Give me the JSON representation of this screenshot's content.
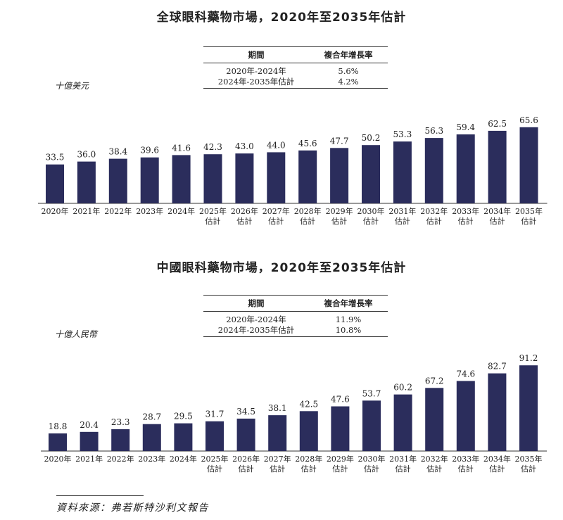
{
  "charts": [
    {
      "title": "全球眼科藥物市場，2020年至2035年估計",
      "unit": "十億美元",
      "cagr_table": {
        "headers": [
          "期間",
          "複合年增長率"
        ],
        "rows": [
          [
            "2020年-2024年",
            "5.6%"
          ],
          [
            "2024年-2035年估計",
            "4.2%"
          ]
        ]
      }
    },
    {
      "title": "中國眼科藥物市場，2020年至2035年估計",
      "unit": "十億人民幣",
      "cagr_table": {
        "headers": [
          "期間",
          "複合年增長率"
        ],
        "rows": [
          [
            "2020年-2024年",
            "11.9%"
          ],
          [
            "2024年-2035年估計",
            "10.8%"
          ]
        ]
      }
    }
  ],
  "chart_data": [
    {
      "type": "bar",
      "title": "全球眼科藥物市場，2020年至2035年估計",
      "ylabel": "十億美元",
      "categories": [
        "2020年",
        "2021年",
        "2022年",
        "2023年",
        "2024年",
        "2025年\n估計",
        "2026年\n估計",
        "2027年\n估計",
        "2028年\n估計",
        "2029年\n估計",
        "2030年\n估計",
        "2031年\n估計",
        "2032年\n估計",
        "2033年\n估計",
        "2034年\n估計",
        "2035年\n估計"
      ],
      "values": [
        33.5,
        36.0,
        38.4,
        39.6,
        41.6,
        42.3,
        43.0,
        44.0,
        45.6,
        47.7,
        50.2,
        53.3,
        56.3,
        59.4,
        62.5,
        65.6
      ],
      "value_labels": [
        "33.5",
        "36.0",
        "38.4",
        "39.6",
        "41.6",
        "42.3",
        "43.0",
        "44.0",
        "45.6",
        "47.7",
        "50.2",
        "53.3",
        "56.3",
        "59.4",
        "62.5",
        "65.6"
      ],
      "bar_color": "#2b2d5c",
      "grid": false
    },
    {
      "type": "bar",
      "title": "中國眼科藥物市場，2020年至2035年估計",
      "ylabel": "十億人民幣",
      "categories": [
        "2020年",
        "2021年",
        "2022年",
        "2023年",
        "2024年",
        "2025年\n估計",
        "2026年\n估計",
        "2027年\n估計",
        "2028年\n估計",
        "2029年\n估計",
        "2030年\n估計",
        "2031年\n估計",
        "2032年\n估計",
        "2033年\n估計",
        "2034年\n估計",
        "2035年\n估計"
      ],
      "values": [
        18.8,
        20.4,
        23.3,
        28.7,
        29.5,
        31.7,
        34.5,
        38.1,
        42.5,
        47.6,
        53.7,
        60.2,
        67.2,
        74.6,
        82.7,
        91.2
      ],
      "value_labels": [
        "18.8",
        "20.4",
        "23.3",
        "28.7",
        "29.5",
        "31.7",
        "34.5",
        "38.1",
        "42.5",
        "47.6",
        "53.7",
        "60.2",
        "67.2",
        "74.6",
        "82.7",
        "91.2"
      ],
      "bar_color": "#2b2d5c",
      "grid": false
    }
  ],
  "source": "資料來源：弗若斯特沙利文報告"
}
